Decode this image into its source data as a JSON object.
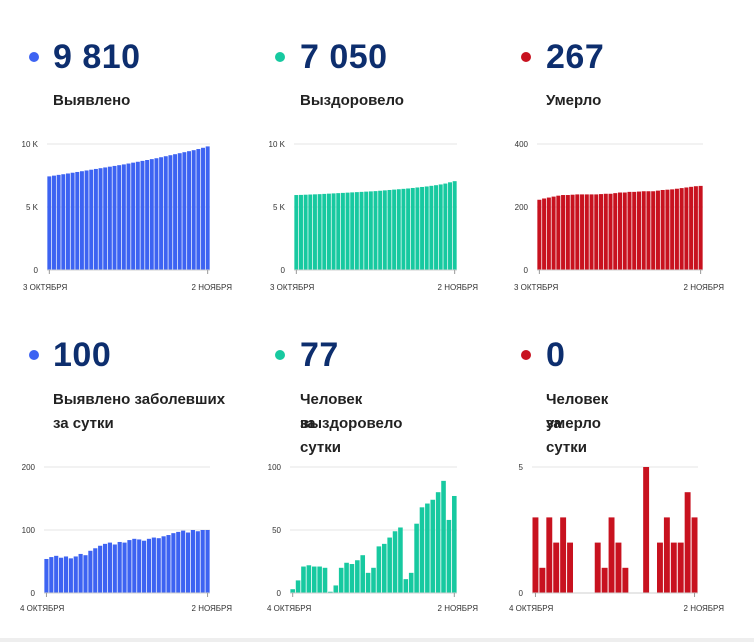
{
  "colors": {
    "blue": "#3d63f2",
    "green": "#17c9a0",
    "red": "#c8121f",
    "number": "#0d2e6e"
  },
  "panels": [
    {
      "number": "9 810",
      "label1": "Выявлено",
      "label2": ""
    },
    {
      "number": "7 050",
      "label1": "Выздоровело",
      "label2": ""
    },
    {
      "number": "267",
      "label1": "Умерло",
      "label2": ""
    },
    {
      "number": "100",
      "label1": "Выявлено заболевших",
      "label2": "за сутки"
    },
    {
      "number": "77",
      "label1": "Человек выздоровело",
      "label2": "за сутки"
    },
    {
      "number": "0",
      "label1": "Человек умерло",
      "label2": "за сутки"
    }
  ],
  "chart_data": [
    {
      "type": "bar",
      "color": "blue",
      "ylim": [
        0,
        10000
      ],
      "yticks": [
        {
          "v": 10000,
          "label": "10 K"
        },
        {
          "v": 5000,
          "label": "5 K"
        },
        {
          "v": 0,
          "label": "0"
        }
      ],
      "xstart_label": "3 ОКТЯБРЯ",
      "xend_label": "2 НОЯБРЯ",
      "values": [
        7430,
        7490,
        7550,
        7600,
        7660,
        7720,
        7780,
        7840,
        7900,
        7960,
        8020,
        8080,
        8140,
        8200,
        8260,
        8320,
        8380,
        8450,
        8520,
        8590,
        8660,
        8730,
        8800,
        8870,
        8950,
        9030,
        9110,
        9190,
        9270,
        9350,
        9430,
        9510,
        9600,
        9700,
        9810
      ]
    },
    {
      "type": "bar",
      "color": "green",
      "ylim": [
        0,
        10000
      ],
      "yticks": [
        {
          "v": 10000,
          "label": "10 K"
        },
        {
          "v": 5000,
          "label": "5 K"
        },
        {
          "v": 0,
          "label": "0"
        }
      ],
      "xstart_label": "3 ОКТЯБРЯ",
      "xend_label": "2 НОЯБРЯ",
      "values": [
        5950,
        5960,
        5975,
        5990,
        6005,
        6020,
        6040,
        6060,
        6080,
        6100,
        6120,
        6140,
        6160,
        6180,
        6200,
        6220,
        6240,
        6260,
        6290,
        6320,
        6350,
        6380,
        6410,
        6440,
        6470,
        6510,
        6550,
        6590,
        6630,
        6680,
        6730,
        6790,
        6860,
        6960,
        7050
      ]
    },
    {
      "type": "bar",
      "color": "red",
      "ylim": [
        0,
        400
      ],
      "yticks": [
        {
          "v": 400,
          "label": "400"
        },
        {
          "v": 200,
          "label": "200"
        },
        {
          "v": 0,
          "label": "0"
        }
      ],
      "xstart_label": "3 ОКТЯБРЯ",
      "xend_label": "2 НОЯБРЯ",
      "values": [
        223,
        227,
        230,
        233,
        236,
        238,
        238,
        239,
        240,
        240,
        240,
        240,
        240,
        241,
        242,
        242,
        244,
        246,
        246,
        248,
        248,
        249,
        250,
        250,
        250,
        252,
        254,
        255,
        256,
        258,
        260,
        262,
        264,
        266,
        267
      ]
    },
    {
      "type": "bar",
      "color": "blue",
      "ylim": [
        0,
        200
      ],
      "yticks": [
        {
          "v": 200,
          "label": "200"
        },
        {
          "v": 100,
          "label": "100"
        },
        {
          "v": 0,
          "label": "0"
        }
      ],
      "xstart_label": "4 ОКТЯБРЯ",
      "xend_label": "2 НОЯБРЯ",
      "values": [
        54,
        57,
        59,
        56,
        58,
        55,
        58,
        62,
        60,
        67,
        71,
        75,
        78,
        80,
        77,
        81,
        80,
        84,
        86,
        85,
        83,
        86,
        88,
        87,
        90,
        92,
        95,
        97,
        99,
        96,
        100,
        98,
        100,
        100
      ]
    },
    {
      "type": "bar",
      "color": "green",
      "ylim": [
        0,
        100
      ],
      "yticks": [
        {
          "v": 100,
          "label": "100"
        },
        {
          "v": 50,
          "label": "50"
        },
        {
          "v": 0,
          "label": "0"
        }
      ],
      "xstart_label": "4 ОКТЯБРЯ",
      "xend_label": "2 НОЯБРЯ",
      "values": [
        3,
        10,
        21,
        22,
        21,
        21,
        20,
        1,
        6,
        20,
        24,
        23,
        26,
        30,
        16,
        20,
        37,
        39,
        44,
        49,
        52,
        11,
        16,
        55,
        68,
        71,
        74,
        80,
        89,
        58,
        77
      ]
    },
    {
      "type": "bar",
      "color": "red",
      "ylim": [
        0,
        5
      ],
      "yticks": [
        {
          "v": 5,
          "label": "5"
        },
        {
          "v": 0,
          "label": "0"
        }
      ],
      "xstart_label": "4 ОКТЯБРЯ",
      "xend_label": "2 НОЯБРЯ",
      "values": [
        3,
        1,
        3,
        2,
        3,
        2,
        0,
        0,
        0,
        2,
        1,
        3,
        2,
        1,
        0,
        0,
        5,
        0,
        2,
        3,
        2,
        2,
        4,
        3
      ]
    }
  ]
}
